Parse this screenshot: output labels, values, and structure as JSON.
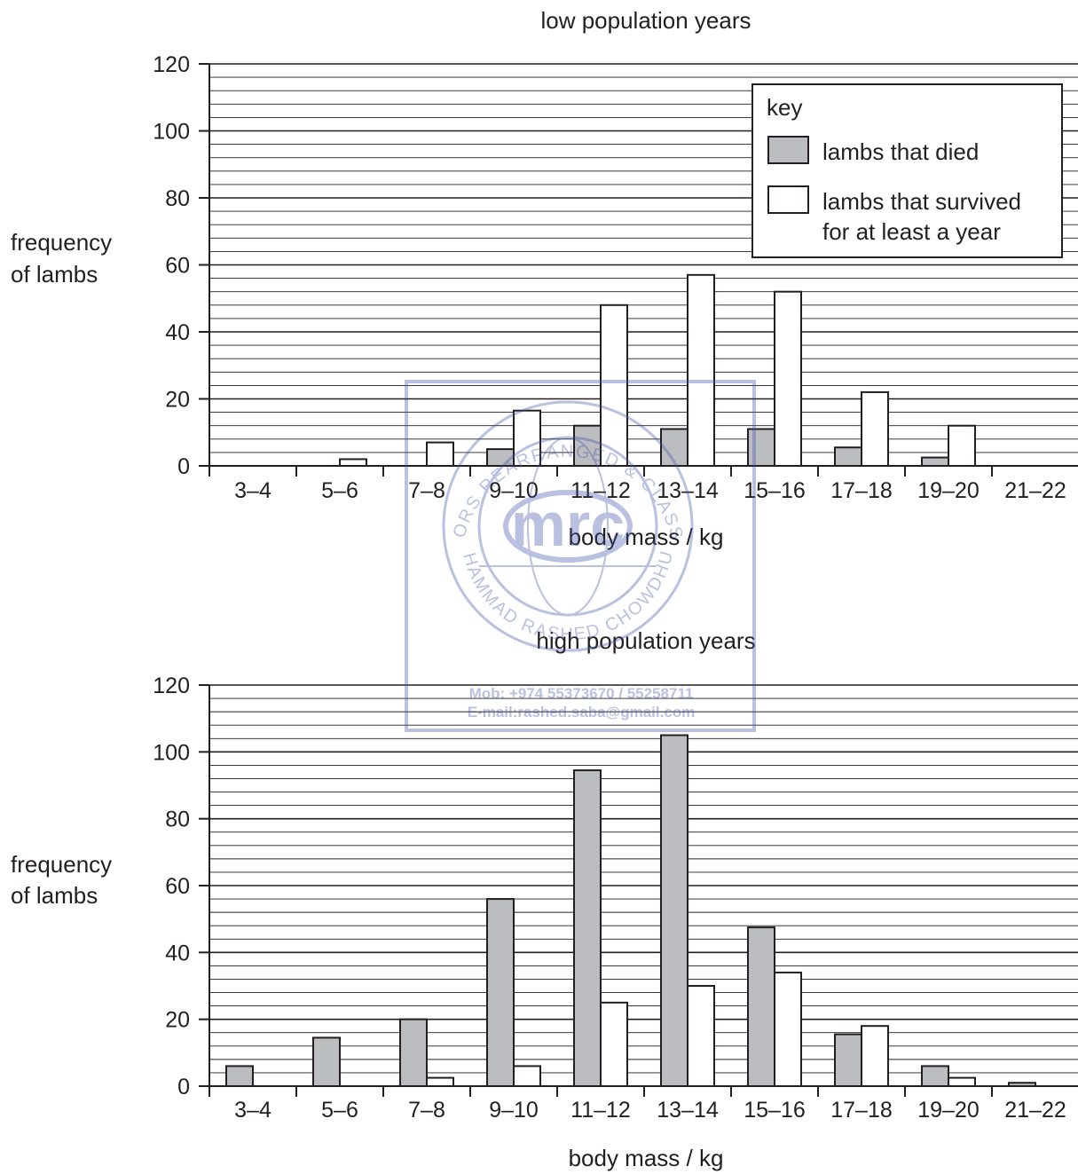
{
  "chart_data": [
    {
      "type": "bar",
      "title": "low population years",
      "xlabel": "body mass / kg",
      "ylabel": [
        "frequency",
        "of lambs"
      ],
      "ylim": [
        0,
        120
      ],
      "yticks": [
        "0",
        "20",
        "40",
        "60",
        "80",
        "100",
        "120"
      ],
      "categories": [
        "3–4",
        "5–6",
        "7–8",
        "9–10",
        "11–12",
        "13–14",
        "15–16",
        "17–18",
        "19–20",
        "21–22"
      ],
      "series": [
        {
          "name": "lambs that died",
          "color": "#bcbdc0",
          "values": [
            0,
            0,
            0,
            5,
            12,
            11,
            11,
            5.5,
            2.5,
            0
          ]
        },
        {
          "name": "lambs that survived for at least a year",
          "color": "#ffffff",
          "values": [
            0,
            2,
            7,
            16.5,
            48,
            57,
            52,
            22,
            12,
            0
          ]
        }
      ],
      "grid": true
    },
    {
      "type": "bar",
      "title": "high population years",
      "xlabel": "body mass / kg",
      "ylabel": [
        "frequency",
        "of lambs"
      ],
      "ylim": [
        0,
        120
      ],
      "yticks": [
        "0",
        "20",
        "40",
        "60",
        "80",
        "100",
        "120"
      ],
      "categories": [
        "3–4",
        "5–6",
        "7–8",
        "9–10",
        "11–12",
        "13–14",
        "15–16",
        "17–18",
        "19–20",
        "21–22"
      ],
      "series": [
        {
          "name": "lambs that died",
          "color": "#bcbdc0",
          "values": [
            6,
            14.5,
            20,
            56,
            94.5,
            105,
            47.5,
            15.5,
            6,
            1
          ]
        },
        {
          "name": "lambs that survived for at least a year",
          "color": "#ffffff",
          "values": [
            0,
            0,
            2.5,
            6,
            25,
            30,
            34,
            18,
            2.5,
            0
          ]
        }
      ],
      "grid": true
    }
  ],
  "legend": {
    "title": "key",
    "items": [
      {
        "label_lines": [
          "lambs that died"
        ],
        "color": "#bcbdc0"
      },
      {
        "label_lines": [
          "lambs that survived",
          "for at least a year"
        ],
        "color": "#ffffff"
      }
    ]
  },
  "watermark": {
    "logo": "mrc",
    "ring_text_top": "MENTORS REARRANGED & CLASSIFIED",
    "ring_text_bottom": "MUHAMMAD RASHED CHOWDHURY",
    "phone": "Mob:  +974 55373670 / 55258711",
    "email": "E-mail:rashed.saba@gmail.com",
    "color": "#3d4fa8"
  }
}
